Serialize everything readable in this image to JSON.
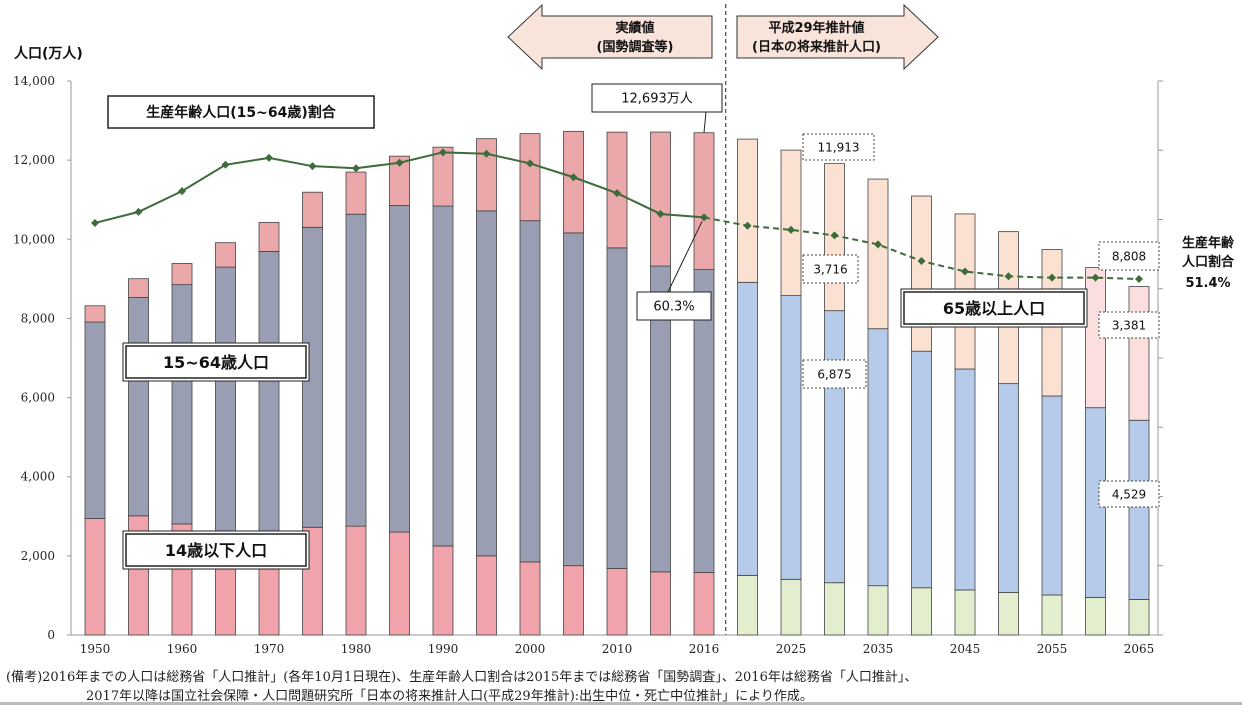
{
  "chart_data": {
    "type": "bar",
    "ylabel": "人口(万人)",
    "ylim": [
      0,
      14000
    ],
    "yticks": [
      "0",
      "2,000",
      "4,000",
      "6,000",
      "8,000",
      "10,000",
      "12,000",
      "14,000"
    ],
    "x": [
      1950,
      1955,
      1960,
      1965,
      1970,
      1975,
      1980,
      1985,
      1990,
      1995,
      2000,
      2005,
      2010,
      2015,
      2016,
      2020,
      2025,
      2030,
      2035,
      2040,
      2045,
      2050,
      2055,
      2060,
      2065
    ],
    "xtick_labels": [
      "1950",
      "",
      "1960",
      "",
      "1970",
      "",
      "1980",
      "",
      "1990",
      "",
      "2000",
      "",
      "2010",
      "",
      "2016",
      "",
      "2025",
      "",
      "2035",
      "",
      "2045",
      "",
      "2055",
      "",
      "2065"
    ],
    "projected_from_index": 15,
    "series": [
      {
        "name": "14歳以下人口",
        "values": [
          2943,
          3012,
          2807,
          2553,
          2482,
          2722,
          2751,
          2603,
          2249,
          2001,
          1847,
          1752,
          1680,
          1595,
          1578,
          1507,
          1407,
          1321,
          1246,
          1194,
          1138,
          1077,
          1012,
          951,
          898
        ]
      },
      {
        "name": "15~64歳人口",
        "values": [
          4966,
          5517,
          6047,
          6744,
          7212,
          7581,
          7883,
          8251,
          8590,
          8716,
          8622,
          8409,
          8103,
          7728,
          7656,
          7406,
          7170,
          6875,
          6494,
          5978,
          5584,
          5275,
          5028,
          4793,
          4529
        ]
      },
      {
        "name": "65歳以上人口",
        "values": [
          411,
          475,
          535,
          618,
          733,
          887,
          1065,
          1247,
          1489,
          1826,
          2201,
          2567,
          2925,
          3387,
          3459,
          3619,
          3677,
          3716,
          3782,
          3921,
          3919,
          3841,
          3704,
          3540,
          3381
        ]
      }
    ],
    "ratio": {
      "name": "生産年齢人口(15~64歳)割合",
      "values": [
        59.5,
        61.1,
        64.1,
        67.9,
        68.9,
        67.7,
        67.4,
        68.2,
        69.7,
        69.5,
        68.1,
        66.1,
        63.8,
        60.8,
        60.3,
        59.1,
        58.5,
        57.7,
        56.4,
        54.0,
        52.5,
        51.8,
        51.6,
        51.6,
        51.4
      ],
      "ylim": [
        0,
        80
      ]
    },
    "annotations": {
      "actual_arrow": [
        "実績値",
        "(国勢調査等)"
      ],
      "projection_arrow": [
        "平成29年推計値",
        "(日本の将来推計人口)"
      ],
      "total_2016": "12,693万人",
      "ratio_2016": "60.3%",
      "total_2030": "11,913",
      "elderly_2030": "3,716",
      "working_2030": "6,875",
      "total_2065": "8,808",
      "elderly_2065": "3,381",
      "working_2065": "4,529",
      "right_label": [
        "生産年齢",
        "人口割合",
        "51.4%"
      ],
      "label_ratio": "生産年齢人口(15~64歳)割合",
      "label_working": "15~64歳人口",
      "label_child": "14歳以下人口",
      "label_elderly": "65歳以上人口"
    },
    "colors": {
      "child_actual": "#f0a3ab",
      "working_actual": "#999eb2",
      "elderly_actual": "#eaa8aa",
      "child_projected": "#e3eecf",
      "working_projected": "#b6cbea",
      "elderly_projected": "#fae1d2",
      "elderly_last": "#fbdede",
      "line": "#3d6b3a",
      "arrow_fill": "#f8e4da"
    }
  },
  "notes": {
    "line1": "(備考)2016年までの人口は総務省「人口推計」(各年10月1日現在)、生産年齢人口割合は2015年までは総務省「国勢調査」、2016年は総務省「人口推計」、",
    "line2": "2017年以降は国立社会保障・人口問題研究所「日本の将来推計人口(平成29年推計):出生中位・死亡中位推計」により作成。"
  }
}
